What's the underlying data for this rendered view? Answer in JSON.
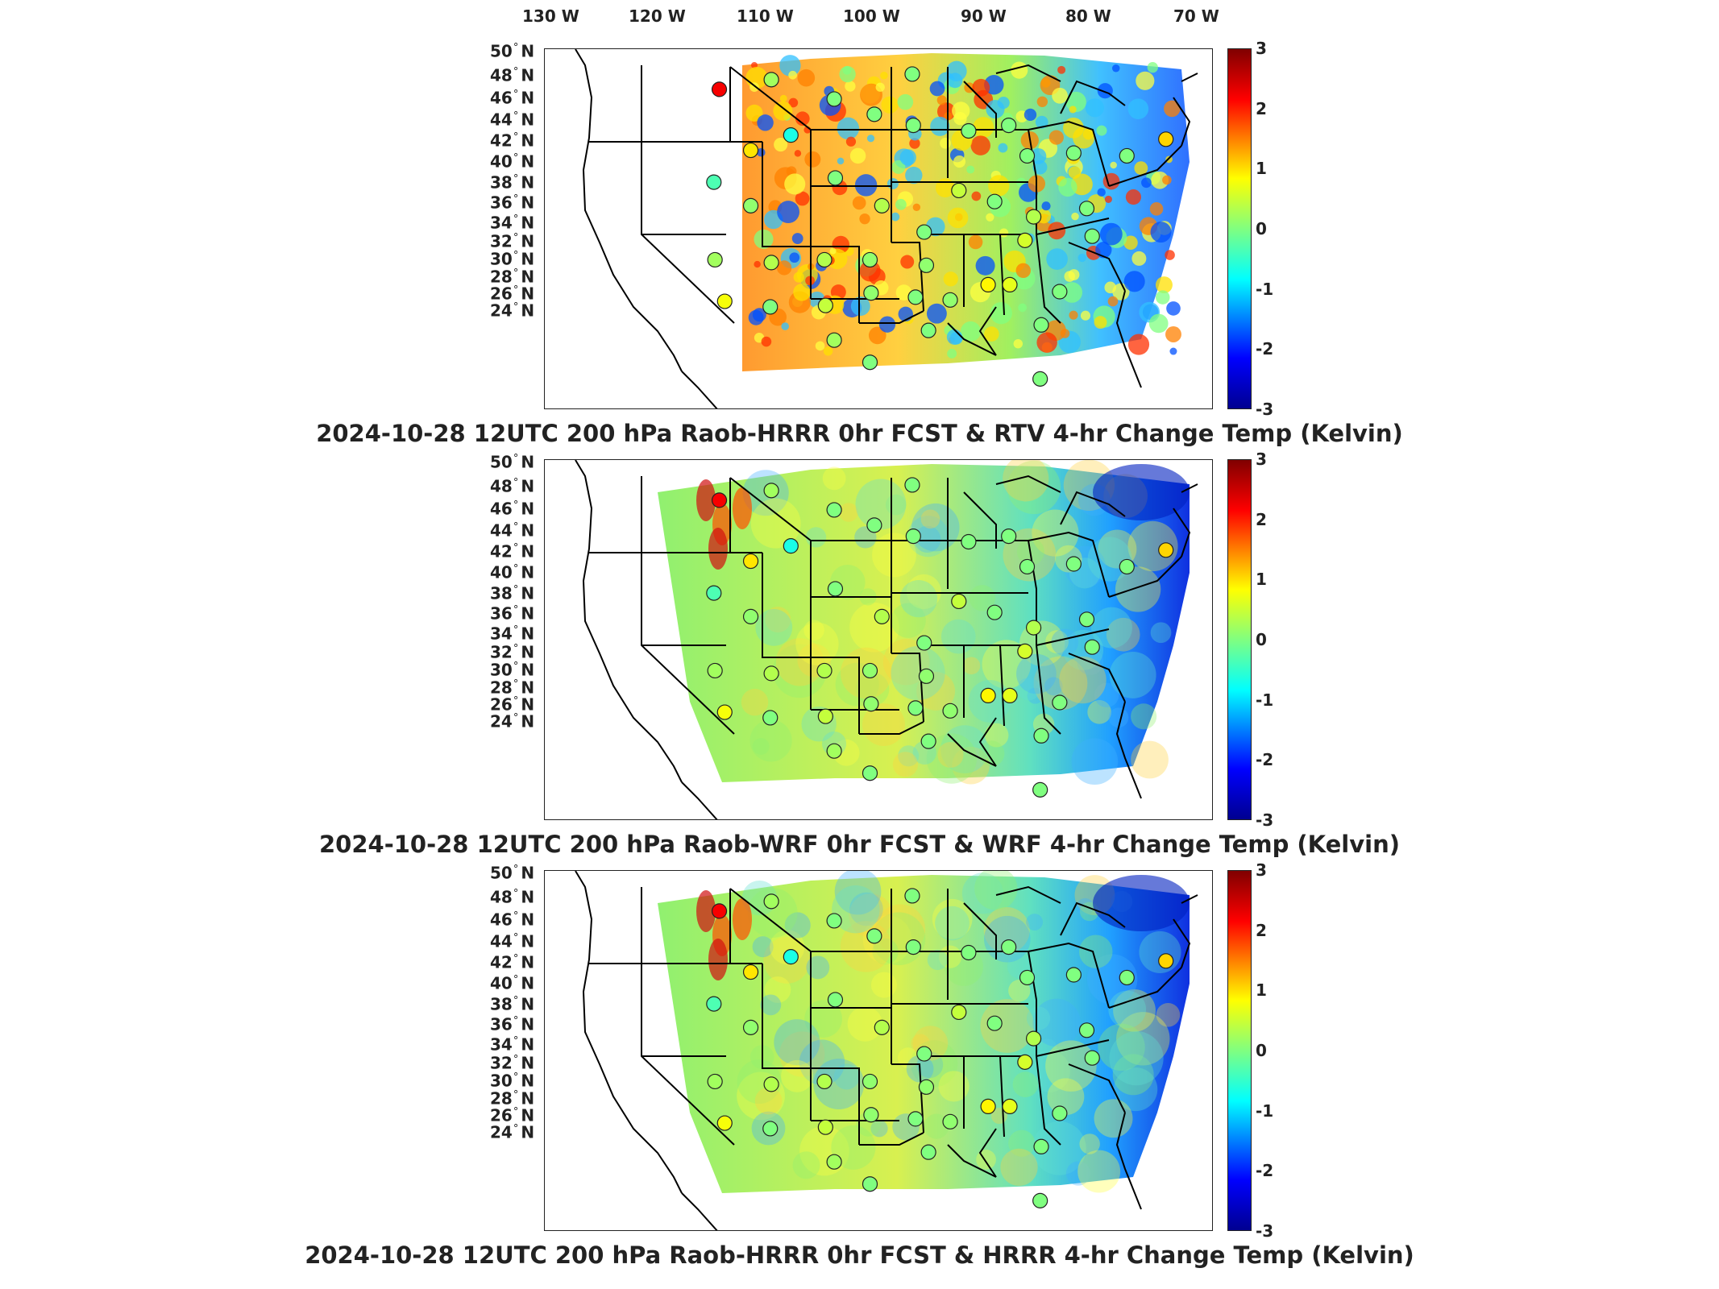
{
  "lon_labels": [
    "130 W",
    "120 W",
    "110 W",
    "100 W",
    "90 W",
    "80 W",
    "70 W"
  ],
  "lat_labels": [
    "50 N",
    "48 N",
    "46 N",
    "44 N",
    "42 N",
    "40 N",
    "38 N",
    "36 N",
    "34 N",
    "32 N",
    "30 N",
    "28 N",
    "26 N",
    "24 N"
  ],
  "colorbar_ticks": [
    "3",
    "2",
    "1",
    "0",
    "-1",
    "-2",
    "-3"
  ],
  "colorbar_range": [
    -3,
    3
  ],
  "colorbar_colors": [
    "#800000",
    "#ff0000",
    "#ff8000",
    "#ffff00",
    "#80ff80",
    "#00ffff",
    "#0080ff",
    "#0000ff",
    "#000090"
  ],
  "panels": [
    {
      "caption": "2024-10-28 12UTC 200 hPa Raob-HRRR 0hr FCST & RTV 4-hr Change Temp (Kelvin)",
      "field_style": "rtv"
    },
    {
      "caption": "2024-10-28 12UTC 200 hPa Raob-WRF 0hr FCST & WRF 4-hr Change Temp (Kelvin)",
      "field_style": "smooth"
    },
    {
      "caption": "2024-10-28 12UTC 200 hPa Raob-HRRR 0hr FCST & HRRR 4-hr Change Temp (Kelvin)",
      "field_style": "smooth"
    }
  ],
  "raob_stations": [
    {
      "lon": -111.4,
      "lat": 47.5,
      "value": 2.3
    },
    {
      "lon": -106.6,
      "lat": 48.2,
      "value": 0.2
    },
    {
      "lon": -100.8,
      "lat": 46.8,
      "value": 0.0
    },
    {
      "lon": -93.6,
      "lat": 48.6,
      "value": 0.0
    },
    {
      "lon": -97.1,
      "lat": 45.7,
      "value": 0.0
    },
    {
      "lon": -104.8,
      "lat": 44.2,
      "value": -0.6
    },
    {
      "lon": -108.5,
      "lat": 43.1,
      "value": 0.9
    },
    {
      "lon": -93.5,
      "lat": 44.9,
      "value": 0.0
    },
    {
      "lon": -88.4,
      "lat": 44.5,
      "value": 0.0
    },
    {
      "lon": -84.7,
      "lat": 44.9,
      "value": 0.0
    },
    {
      "lon": -83.0,
      "lat": 42.7,
      "value": 0.0
    },
    {
      "lon": -78.7,
      "lat": 42.9,
      "value": 0.0
    },
    {
      "lon": -73.8,
      "lat": 42.7,
      "value": 0.0
    },
    {
      "lon": -70.2,
      "lat": 43.9,
      "value": 1.0
    },
    {
      "lon": -111.9,
      "lat": 40.8,
      "value": -0.3
    },
    {
      "lon": -108.5,
      "lat": 39.1,
      "value": 0.1
    },
    {
      "lon": -100.7,
      "lat": 41.1,
      "value": 0.0
    },
    {
      "lon": -96.4,
      "lat": 39.1,
      "value": 0.3
    },
    {
      "lon": -89.3,
      "lat": 40.2,
      "value": 0.4
    },
    {
      "lon": -86.0,
      "lat": 39.4,
      "value": 0.0
    },
    {
      "lon": -82.4,
      "lat": 38.3,
      "value": 0.3
    },
    {
      "lon": -77.5,
      "lat": 38.9,
      "value": 0.0
    },
    {
      "lon": -92.5,
      "lat": 37.2,
      "value": 0.0
    },
    {
      "lon": -83.2,
      "lat": 36.6,
      "value": 0.5
    },
    {
      "lon": -77.0,
      "lat": 36.9,
      "value": 0.0
    },
    {
      "lon": -111.8,
      "lat": 35.2,
      "value": 0.2
    },
    {
      "lon": -106.6,
      "lat": 35.0,
      "value": 0.3
    },
    {
      "lon": -101.7,
      "lat": 35.2,
      "value": 0.3
    },
    {
      "lon": -97.5,
      "lat": 35.2,
      "value": 0.1
    },
    {
      "lon": -92.3,
      "lat": 34.8,
      "value": 0.1
    },
    {
      "lon": -86.6,
      "lat": 33.4,
      "value": 0.8
    },
    {
      "lon": -84.6,
      "lat": 33.4,
      "value": 0.6
    },
    {
      "lon": -80.0,
      "lat": 32.9,
      "value": 0.0
    },
    {
      "lon": -110.9,
      "lat": 32.2,
      "value": 0.7
    },
    {
      "lon": -106.7,
      "lat": 31.8,
      "value": 0.0
    },
    {
      "lon": -101.6,
      "lat": 31.9,
      "value": 0.4
    },
    {
      "lon": -97.4,
      "lat": 32.8,
      "value": 0.1
    },
    {
      "lon": -93.3,
      "lat": 32.5,
      "value": 0.0
    },
    {
      "lon": -90.1,
      "lat": 32.3,
      "value": 0.1
    },
    {
      "lon": -81.7,
      "lat": 30.5,
      "value": 0.0
    },
    {
      "lon": -92.1,
      "lat": 30.1,
      "value": 0.0
    },
    {
      "lon": -97.5,
      "lat": 27.8,
      "value": 0.0
    },
    {
      "lon": -100.8,
      "lat": 29.4,
      "value": 0.2
    },
    {
      "lon": -81.8,
      "lat": 26.6,
      "value": 0.0
    }
  ]
}
